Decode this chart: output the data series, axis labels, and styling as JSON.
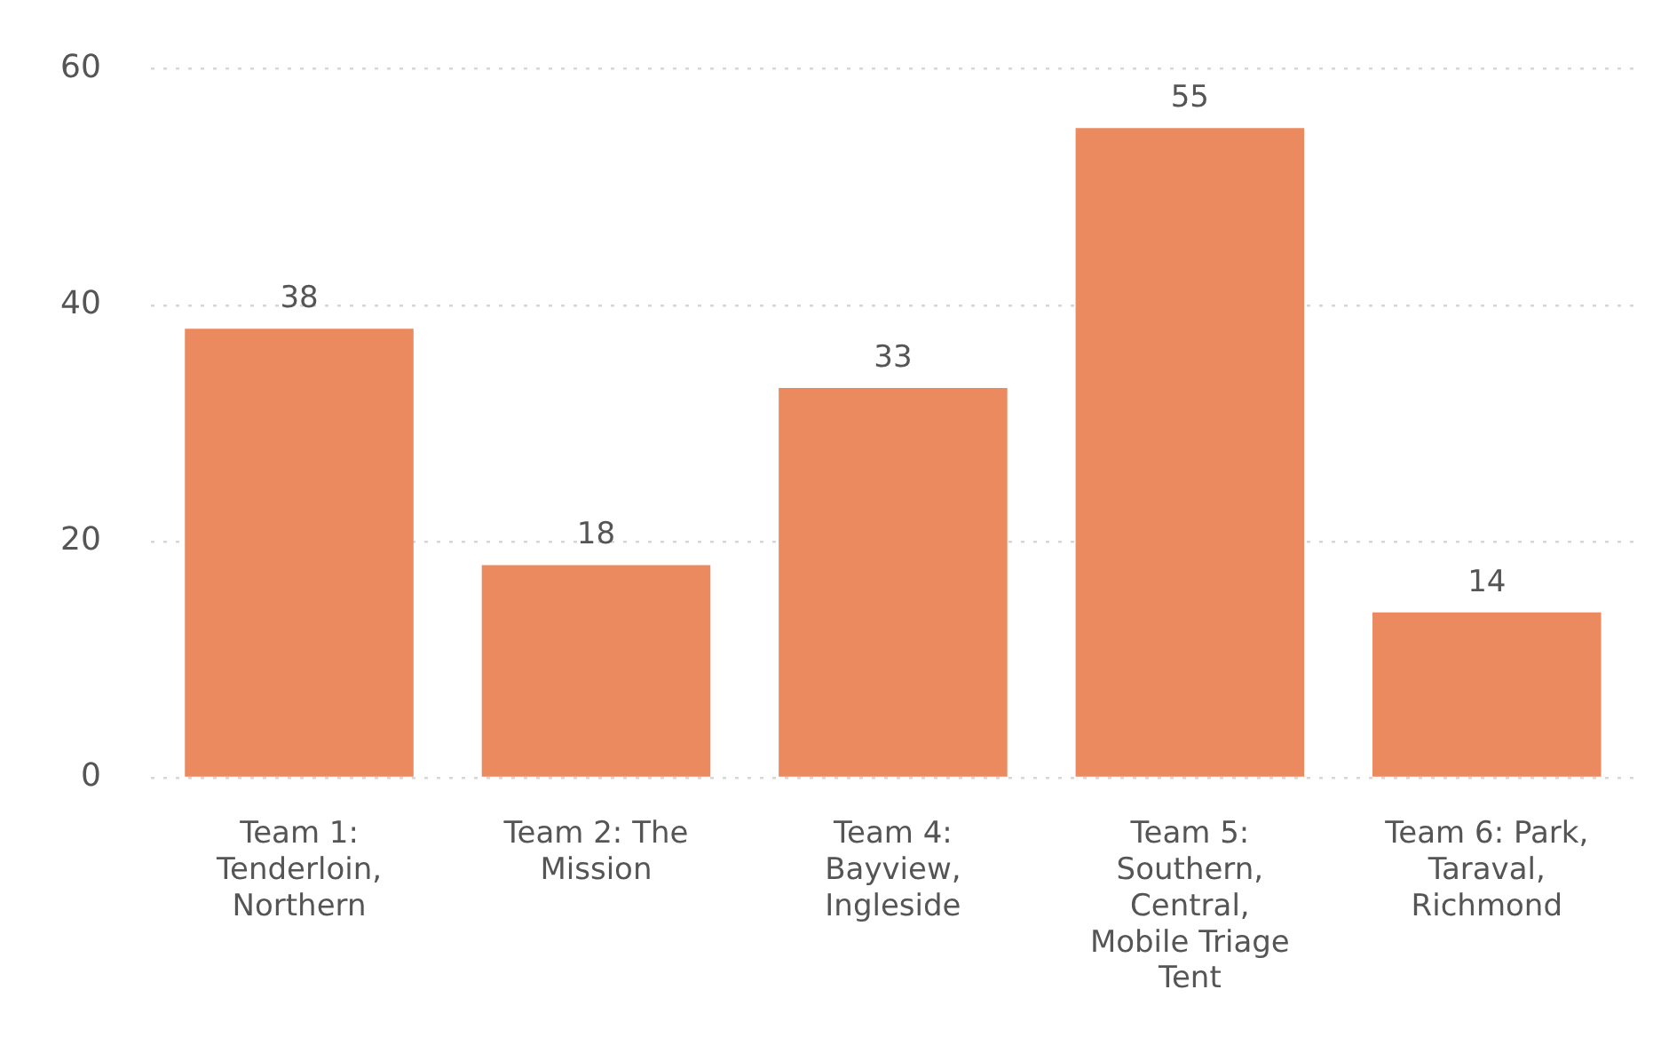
{
  "chart_data": {
    "type": "bar",
    "categories": [
      "Team 1: Tenderloin, Northern",
      "Team 2: The Mission",
      "Team 4: Bayview, Ingleside",
      "Team 5: Southern, Central, Mobile Triage Tent",
      "Team 6: Park, Taraval, Richmond"
    ],
    "values": [
      38,
      18,
      33,
      55,
      14
    ],
    "color": "#eb895f",
    "ylim": [
      0,
      60
    ],
    "yticks": [
      0,
      20,
      40,
      60
    ],
    "grid": "y",
    "data_labels": true
  }
}
